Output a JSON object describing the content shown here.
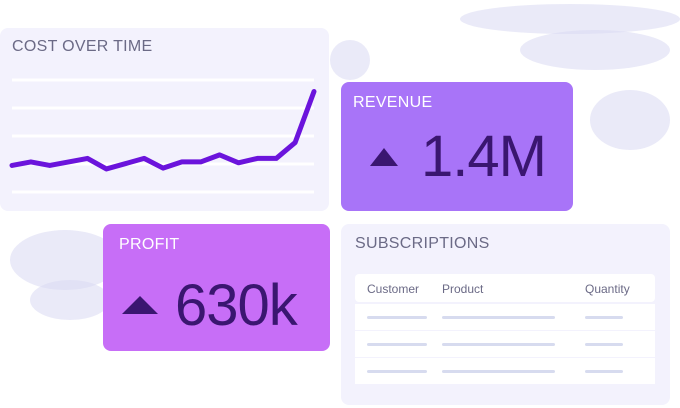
{
  "colors": {
    "card_light": "#f3f2fd",
    "revenue_bg": "#a874f8",
    "profit_bg": "#c76ef7",
    "line": "#6b14dc",
    "value_text": "#3a1670"
  },
  "cost_card": {
    "title": "COST OVER TIME"
  },
  "chart_data": {
    "type": "line",
    "title": "COST OVER TIME",
    "xlabel": "",
    "ylabel": "",
    "grid": true,
    "ylim": [
      0,
      100
    ],
    "x": [
      1,
      2,
      3,
      4,
      5,
      6,
      7,
      8,
      9,
      10,
      11,
      12,
      13,
      14,
      15,
      16,
      17
    ],
    "series": [
      {
        "values": [
          12,
          16,
          12,
          16,
          20,
          8,
          14,
          20,
          9,
          16,
          16,
          24,
          15,
          20,
          20,
          38,
          96
        ]
      }
    ]
  },
  "revenue_card": {
    "title": "REVENUE",
    "icon": "triangle-up-icon",
    "value": "1.4M"
  },
  "profit_card": {
    "title": "PROFIT",
    "icon": "triangle-up-icon",
    "value": "630k"
  },
  "subscriptions_card": {
    "title": "SUBSCRIPTIONS",
    "columns": [
      "Customer",
      "Product",
      "Quantity"
    ],
    "rows_count_visible": 3
  }
}
